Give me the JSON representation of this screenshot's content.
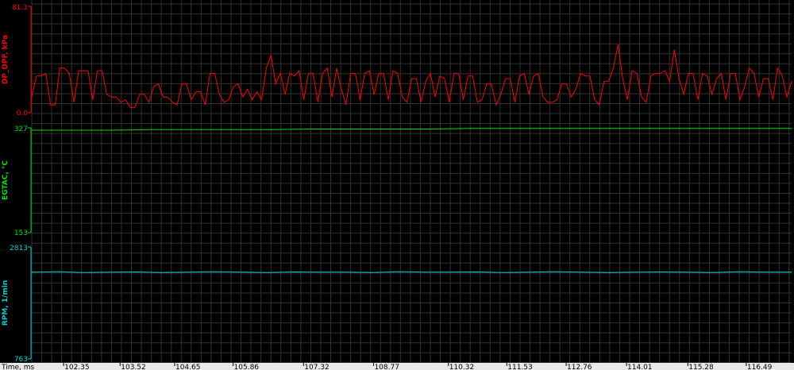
{
  "chart_data": [
    {
      "type": "line",
      "ylabel": "DP_DPF, kPa",
      "ylim": [
        0.0,
        81.1
      ],
      "ytick_labels": [
        "81.1",
        "0.0"
      ],
      "color": "#ff0000",
      "xlim": [
        101.69,
        117.43
      ],
      "values": [
        12,
        28,
        28,
        30,
        6,
        6,
        34,
        34,
        30,
        8,
        32,
        32,
        32,
        10,
        32,
        32,
        14,
        12,
        12,
        8,
        10,
        4,
        4,
        14,
        14,
        8,
        20,
        22,
        12,
        12,
        8,
        6,
        22,
        22,
        10,
        16,
        16,
        6,
        30,
        30,
        14,
        8,
        10,
        20,
        22,
        12,
        18,
        10,
        16,
        10,
        34,
        44,
        22,
        30,
        14,
        30,
        28,
        32,
        10,
        30,
        30,
        8,
        30,
        34,
        12,
        34,
        18,
        6,
        30,
        30,
        10,
        30,
        32,
        14,
        30,
        30,
        10,
        32,
        30,
        12,
        8,
        26,
        26,
        8,
        24,
        30,
        12,
        28,
        26,
        8,
        30,
        30,
        10,
        28,
        28,
        8,
        10,
        22,
        22,
        6,
        14,
        26,
        26,
        8,
        28,
        30,
        14,
        28,
        30,
        12,
        8,
        8,
        10,
        22,
        22,
        12,
        18,
        30,
        28,
        28,
        10,
        6,
        24,
        24,
        34,
        52,
        26,
        10,
        32,
        30,
        12,
        8,
        28,
        30,
        30,
        32,
        24,
        48,
        26,
        14,
        30,
        30,
        10,
        30,
        28,
        14,
        26,
        30,
        10,
        30,
        30,
        10,
        20,
        34,
        30,
        12,
        26,
        26,
        10,
        34,
        28,
        12,
        24
      ],
      "grid": true
    },
    {
      "type": "line",
      "ylabel": "EGTAC, °C",
      "ylim": [
        153,
        327
      ],
      "ytick_labels": [
        "327",
        "153"
      ],
      "color": "#00e000",
      "xlim": [
        101.69,
        117.43
      ],
      "values": [
        323,
        323,
        323,
        324,
        324,
        324,
        324,
        325,
        325,
        325,
        325,
        326,
        326,
        326,
        326,
        326,
        326,
        326,
        326,
        326
      ],
      "grid": true
    },
    {
      "type": "line",
      "ylabel": "RPM, 1/min",
      "ylim": [
        763,
        2813
      ],
      "ytick_labels": [
        "2813",
        "763"
      ],
      "color": "#00d0d0",
      "xlim": [
        101.69,
        117.43
      ],
      "values": [
        2350,
        2360,
        2345,
        2350,
        2355,
        2345,
        2350,
        2360,
        2350,
        2345,
        2355,
        2350,
        2350,
        2345,
        2360,
        2350,
        2350,
        2355,
        2345,
        2350,
        2360,
        2350,
        2345,
        2350,
        2355,
        2350,
        2345,
        2360,
        2350,
        2350
      ],
      "grid": true
    }
  ],
  "x_axis": {
    "label": "Time, ms",
    "ticks": [
      102.35,
      103.52,
      104.65,
      105.86,
      107.32,
      108.77,
      110.32,
      111.53,
      112.76,
      114.01,
      115.28,
      116.49
    ],
    "tick_labels": [
      "102.35",
      "103.52",
      "104.65",
      "105.86",
      "107.32",
      "108.77",
      "110.32",
      "111.53",
      "112.76",
      "114.01",
      "115.28",
      "116.49"
    ]
  }
}
